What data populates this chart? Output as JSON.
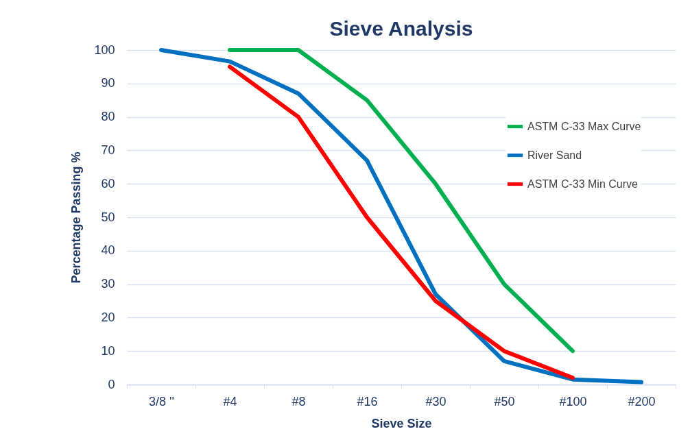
{
  "chart_data": {
    "type": "line",
    "title": "Sieve Analysis",
    "xlabel": "Sieve Size",
    "ylabel": "Percentage Passing %",
    "categories": [
      "3/8 ''",
      "#4",
      "#8",
      "#16",
      "#30",
      "#50",
      "#100",
      "#200"
    ],
    "series": [
      {
        "name": "ASTM C-33 Max Curve",
        "color": "#00b050",
        "values": [
          null,
          100,
          100,
          85,
          60,
          30,
          10,
          null
        ]
      },
      {
        "name": "River Sand",
        "color": "#0070c0",
        "values": [
          100,
          96.6,
          87,
          67,
          27,
          7,
          1.5,
          0.7
        ]
      },
      {
        "name": "ASTM C-33 Min Curve",
        "color": "#ff0000",
        "values": [
          null,
          95,
          80,
          50,
          25,
          10,
          2,
          null
        ]
      }
    ],
    "ylim": [
      0,
      100
    ],
    "yticks": [
      0,
      10,
      20,
      30,
      40,
      50,
      60,
      70,
      80,
      90,
      100
    ],
    "grid": "y",
    "legend": "right",
    "marker": "none",
    "line_style": "solid"
  }
}
